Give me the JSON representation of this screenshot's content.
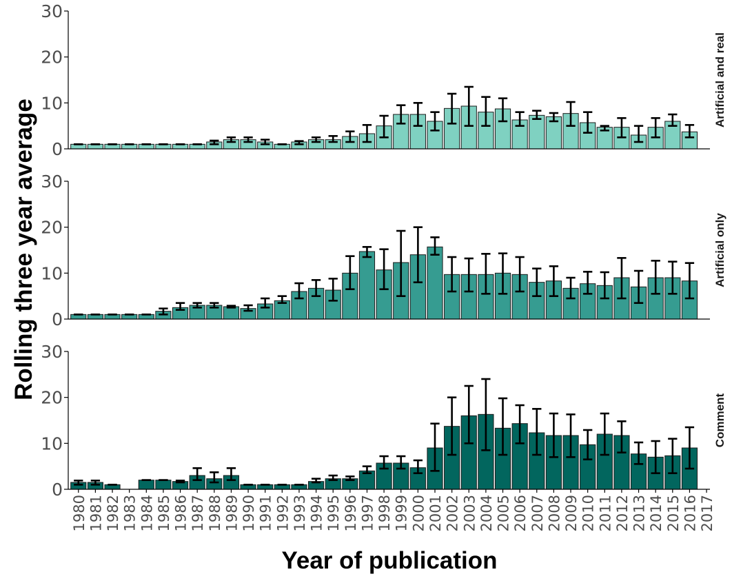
{
  "chart_data": {
    "type": "bar",
    "xlabel": "Year of publication",
    "ylabel": "Rolling three year average",
    "ylim": [
      0,
      30
    ],
    "yticks": [
      "0",
      "10",
      "20",
      "30"
    ],
    "categories": [
      "1980",
      "1981",
      "1982",
      "1983",
      "1984",
      "1985",
      "1986",
      "1987",
      "1988",
      "1989",
      "1990",
      "1991",
      "1992",
      "1993",
      "1994",
      "1995",
      "1996",
      "1997",
      "1998",
      "1999",
      "2000",
      "2001",
      "2002",
      "2003",
      "2004",
      "2005",
      "2006",
      "2007",
      "2008",
      "2009",
      "2010",
      "2011",
      "2012",
      "2013",
      "2014",
      "2015",
      "2016",
      "2017"
    ],
    "grid": false,
    "panels": [
      {
        "name": "Artificial and real",
        "color": "#7fd1c1",
        "values": [
          1,
          1,
          1,
          1,
          1,
          1,
          1,
          1,
          1.5,
          2,
          2,
          1.5,
          1,
          1.5,
          2,
          2,
          2.7,
          3.3,
          5,
          7.5,
          7.5,
          6,
          8.8,
          9.3,
          8,
          8.7,
          6.3,
          7.3,
          7,
          7.7,
          5.7,
          4.7,
          4.7,
          3,
          4.7,
          6,
          3.7,
          null
        ],
        "err_low": [
          1,
          1,
          1,
          1,
          1,
          1,
          1,
          1,
          1,
          1.5,
          1.5,
          1,
          1,
          1,
          1.5,
          1.5,
          1.5,
          1.5,
          2.5,
          5.5,
          5,
          4,
          5.5,
          5,
          5,
          6,
          5,
          6.5,
          6,
          5,
          3.5,
          4,
          2.5,
          1.5,
          2.5,
          5,
          2.5,
          null
        ],
        "err_high": [
          1,
          1,
          1,
          1,
          1,
          1,
          1,
          1,
          1.8,
          2.5,
          2.5,
          2,
          1,
          1.7,
          2.5,
          2.8,
          3.8,
          5.2,
          7.2,
          9.5,
          10,
          8,
          12,
          13.5,
          11.3,
          11,
          8,
          8.3,
          7.8,
          10.2,
          8,
          5,
          6.7,
          5,
          6.7,
          7.5,
          5.2,
          null
        ]
      },
      {
        "name": "Artificial only",
        "color": "#369c91",
        "values": [
          1,
          1,
          1,
          1,
          1,
          1.7,
          2.5,
          3,
          3,
          2.7,
          2.3,
          3.3,
          4,
          6,
          6.7,
          6.3,
          10,
          14.7,
          10.7,
          12.3,
          14,
          15.7,
          9.7,
          9.7,
          9.7,
          10,
          9.7,
          8,
          8.3,
          6.7,
          7.7,
          7.3,
          9,
          7,
          9,
          9,
          8.3,
          null
        ],
        "err_low": [
          1,
          1,
          1,
          1,
          1,
          1,
          2,
          2.5,
          2.5,
          2.5,
          1.8,
          2.5,
          3.5,
          4.5,
          5,
          4,
          6.5,
          13.5,
          6.5,
          5,
          8,
          14,
          6,
          6,
          5.5,
          5.5,
          6,
          5,
          5,
          4.5,
          5.5,
          4.5,
          4.5,
          3.5,
          5.5,
          5.5,
          4.5,
          null
        ],
        "err_high": [
          1,
          1,
          1,
          1,
          1,
          2.3,
          3.5,
          3.5,
          3.5,
          2.9,
          3,
          4.5,
          5,
          7.8,
          8.5,
          8.8,
          13.7,
          15.7,
          15.2,
          19.2,
          20,
          17.8,
          13.5,
          13.2,
          14.2,
          14.3,
          13.5,
          11,
          11.5,
          9,
          10.3,
          10.2,
          13.3,
          10.5,
          12.7,
          12.5,
          12.2,
          null
        ]
      },
      {
        "name": "Comment",
        "color": "#02665e",
        "values": [
          1.5,
          1.5,
          1,
          null,
          2,
          2,
          1.7,
          3,
          2.3,
          3,
          1,
          1,
          1,
          1,
          1.7,
          2.3,
          2.3,
          4,
          5.7,
          5.7,
          4.7,
          9,
          13.7,
          16,
          16.3,
          13.3,
          14.3,
          12.3,
          11.7,
          11.7,
          9.7,
          12,
          11.7,
          7.7,
          7,
          7.3,
          9,
          null
        ],
        "err_low": [
          1,
          1,
          1,
          null,
          2,
          2,
          1.5,
          2,
          1.5,
          2,
          1,
          1,
          1,
          1,
          1.5,
          2,
          2,
          3.5,
          4.5,
          4.5,
          3.5,
          4,
          7.5,
          10,
          8.5,
          7.5,
          10,
          7.5,
          7,
          7,
          6.5,
          7.5,
          8,
          5.5,
          3.5,
          3.5,
          4.5,
          null
        ],
        "err_high": [
          1.9,
          1.9,
          1,
          null,
          2,
          2,
          1.9,
          4.6,
          3.7,
          4.6,
          1,
          1,
          1,
          1,
          2.3,
          3,
          2.8,
          5,
          7.2,
          7.2,
          6.3,
          14.3,
          20,
          22.5,
          24,
          19.8,
          18.3,
          17.5,
          16.5,
          16.3,
          12.9,
          16.5,
          14.8,
          10.2,
          10.5,
          11,
          13.5,
          null
        ]
      }
    ]
  }
}
